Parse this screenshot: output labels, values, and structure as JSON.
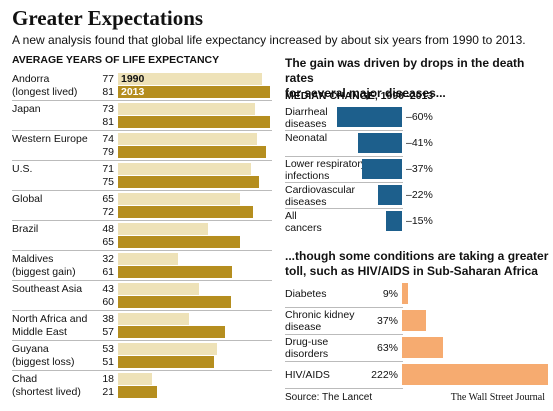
{
  "title": "Greater Expectations",
  "subtitle": "A new analysis found that global life expectancy increased by about six years from 1990 to 2013.",
  "source": "Source: The Lancet",
  "credit": "The Wall Street Journal",
  "chart_data": [
    {
      "type": "bar",
      "orientation": "horizontal",
      "title": "AVERAGE YEARS OF LIFE EXPECTANCY",
      "categories": [
        "Andorra\n(longest lived)",
        "Japan",
        "Western Europe",
        "U.S.",
        "Global",
        "Brazil",
        "Maldives\n(biggest gain)",
        "Southeast Asia",
        "North Africa and\nMiddle East",
        "Guyana\n(biggest loss)",
        "Chad\n(shortest lived)"
      ],
      "series": [
        {
          "name": "1990",
          "color": "#eee2b8",
          "values": [
            77,
            73,
            74,
            71,
            65,
            48,
            32,
            43,
            38,
            53,
            18
          ]
        },
        {
          "name": "2013",
          "color": "#b58e1f",
          "values": [
            81,
            81,
            79,
            75,
            72,
            65,
            61,
            60,
            57,
            51,
            21
          ]
        }
      ]
    },
    {
      "type": "bar",
      "orientation": "horizontal",
      "title": "The gain was driven by drops in the death rates\nfor several major diseases...",
      "subtitle": "MEDIAN CHANGE, 1990–2013",
      "categories": [
        "Diarrheal\ndiseases",
        "Neonatal",
        "Lower respiratory\ninfections",
        "Cardiovascular\ndiseases",
        "All\ncancers"
      ],
      "values": [
        -60,
        -41,
        -37,
        -22,
        -15
      ],
      "value_labels": [
        "–60%",
        "–41%",
        "–37%",
        "–22%",
        "–15%"
      ],
      "color": "#1d5f8c"
    },
    {
      "type": "bar",
      "orientation": "horizontal",
      "title": "...though some conditions are taking a greater\ntoll, such as HIV/AIDS in Sub-Saharan Africa",
      "categories": [
        "Diabetes",
        "Chronic kidney\ndisease",
        "Drug-use\ndisorders",
        "HIV/AIDS"
      ],
      "values": [
        9,
        37,
        63,
        222
      ],
      "value_labels": [
        "9%",
        "37%",
        "63%",
        "222%"
      ],
      "color": "#f6ab70"
    }
  ]
}
